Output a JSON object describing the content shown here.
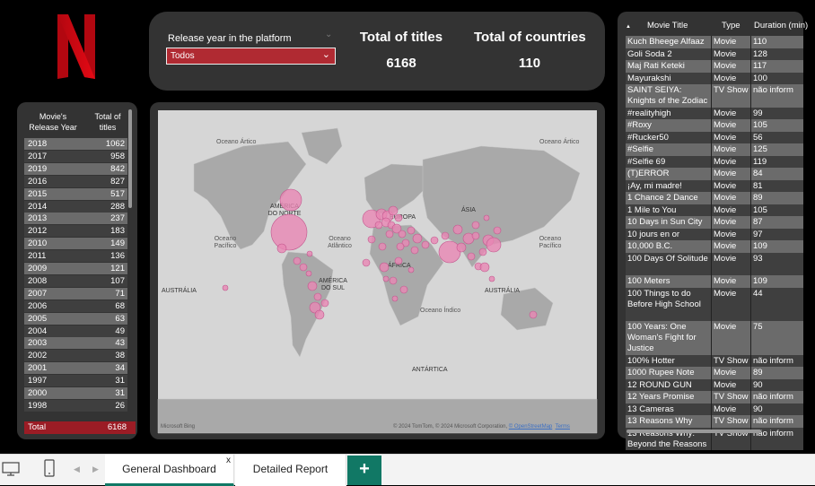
{
  "brand": {
    "logo_letter": "N",
    "color": "#e50914"
  },
  "filter": {
    "label": "Release year in the platform",
    "selected": "Todos"
  },
  "kpis": {
    "titles_label": "Total of titles",
    "titles_value": "6168",
    "countries_label": "Total of countries",
    "countries_value": "110"
  },
  "year_table": {
    "headers": [
      "Movie's Release Year",
      "Total of titles"
    ],
    "rows": [
      [
        "2018",
        "1062"
      ],
      [
        "2017",
        "958"
      ],
      [
        "2019",
        "842"
      ],
      [
        "2016",
        "827"
      ],
      [
        "2015",
        "517"
      ],
      [
        "2014",
        "288"
      ],
      [
        "2013",
        "237"
      ],
      [
        "2012",
        "183"
      ],
      [
        "2010",
        "149"
      ],
      [
        "2011",
        "136"
      ],
      [
        "2009",
        "121"
      ],
      [
        "2008",
        "107"
      ],
      [
        "2007",
        "71"
      ],
      [
        "2006",
        "68"
      ],
      [
        "2005",
        "63"
      ],
      [
        "2004",
        "49"
      ],
      [
        "2003",
        "43"
      ],
      [
        "2002",
        "38"
      ],
      [
        "2001",
        "34"
      ],
      [
        "1997",
        "31"
      ],
      [
        "2000",
        "31"
      ],
      [
        "1998",
        "26"
      ]
    ],
    "total_label": "Total",
    "total_value": "6168"
  },
  "map": {
    "labels": {
      "oceano_artico_left": "Oceano Ártico",
      "oceano_artico_right": "Oceano Ártico",
      "america_norte": "AMÉRICA DO NORTE",
      "europa": "EUROPA",
      "asia": "ÁSIA",
      "oceano_pacifico_left": "Oceano Pacífico",
      "oceano_atlantico": "Oceano Atlântico",
      "oceano_pacifico_right": "Oceano Pacífico",
      "africa": "ÁFRICA",
      "australia_left": "AUSTRÁLIA",
      "america_sul": "AMÉRICA DO SUL",
      "australia_right": "AUSTRÁLIA",
      "oceano_indico": "Oceano Índico",
      "antartica": "ANTÁRTICA"
    },
    "provider": "Microsoft Bing",
    "copyright": "© 2024 TomTom, © 2024 Microsoft Corporation,",
    "osm": "© OpenStreetMap",
    "terms": "Terms",
    "bubble_color": "#e887b4"
  },
  "titles_table": {
    "headers": [
      "Movie Title",
      "Type",
      "Duration (min)"
    ],
    "rows": [
      [
        "Kuch Bheege Alfaaz",
        "Movie",
        "110"
      ],
      [
        "Goli Soda 2",
        "Movie",
        "128"
      ],
      [
        "Maj Rati Keteki",
        "Movie",
        "117"
      ],
      [
        "Mayurakshi",
        "Movie",
        "100"
      ],
      [
        "SAINT SEIYA: Knights of the Zodiac",
        "TV Show",
        "não inform"
      ],
      [
        "#realityhigh",
        "Movie",
        "99"
      ],
      [
        "#Roxy",
        "Movie",
        "105"
      ],
      [
        "#Rucker50",
        "Movie",
        "56"
      ],
      [
        "#Selfie",
        "Movie",
        "125"
      ],
      [
        "#Selfie 69",
        "Movie",
        "119"
      ],
      [
        "(T)ERROR",
        "Movie",
        "84"
      ],
      [
        "¡Ay, mi madre!",
        "Movie",
        "81"
      ],
      [
        "1 Chance 2 Dance",
        "Movie",
        "89"
      ],
      [
        "1 Mile to You",
        "Movie",
        "105"
      ],
      [
        "10 Days in Sun City",
        "Movie",
        "87"
      ],
      [
        "10 jours en or",
        "Movie",
        "97"
      ],
      [
        "10,000 B.C.",
        "Movie",
        "109"
      ],
      [
        "100 Days Of Solitude",
        "Movie",
        "93"
      ],
      [
        "100 Meters",
        "Movie",
        "109"
      ],
      [
        "100 Things to do Before High School",
        "Movie",
        "44"
      ],
      [
        "100 Years: One Woman's Fight for Justice",
        "Movie",
        "75"
      ],
      [
        "100% Hotter",
        "TV Show",
        "não inform"
      ],
      [
        "1000 Rupee Note",
        "Movie",
        "89"
      ],
      [
        "12 ROUND GUN",
        "Movie",
        "90"
      ],
      [
        "12 Years Promise",
        "TV Show",
        "não inform"
      ],
      [
        "13 Cameras",
        "Movie",
        "90"
      ],
      [
        "13 Reasons Why",
        "TV Show",
        "não inform"
      ],
      [
        "13 Reasons Why: Beyond the Reasons",
        "TV Show",
        "não inform"
      ]
    ]
  },
  "tabs": {
    "items": [
      "General Dashboard",
      "Detailed Report"
    ],
    "close": "x",
    "add": "+"
  }
}
